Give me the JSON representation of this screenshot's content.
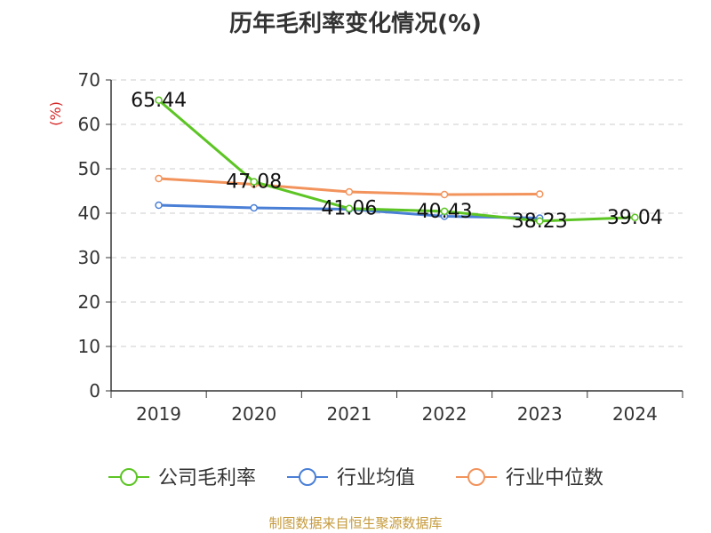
{
  "chart_data": {
    "type": "line",
    "title": "历年毛利率变化情况(%)",
    "ylabel": "(%)",
    "xlabel": "",
    "ylim": [
      0,
      70
    ],
    "yticks": [
      0,
      10,
      20,
      30,
      40,
      50,
      60,
      70
    ],
    "categories": [
      "2019",
      "2020",
      "2021",
      "2022",
      "2023",
      "2024"
    ],
    "grid": true,
    "legend_position": "bottom",
    "series": [
      {
        "name": "公司毛利率",
        "color": "#5cc524",
        "values": [
          65.44,
          47.08,
          41.06,
          40.43,
          38.23,
          39.04
        ],
        "labels": [
          "65.44",
          "47.08",
          "41.06",
          "40.43",
          "38.23",
          "39.04"
        ]
      },
      {
        "name": "行业均值",
        "color": "#4a7fd6",
        "values": [
          41.8,
          41.2,
          40.9,
          39.3,
          38.9,
          null
        ]
      },
      {
        "name": "行业中位数",
        "color": "#f2935c",
        "values": [
          47.8,
          46.5,
          44.8,
          44.2,
          44.3,
          null
        ]
      }
    ]
  },
  "source_note": "制图数据来自恒生聚源数据库",
  "colors": {
    "axis": "#333333",
    "grid": "#cccccc",
    "ylabel": "#d62728",
    "source": "#c59a3c"
  }
}
